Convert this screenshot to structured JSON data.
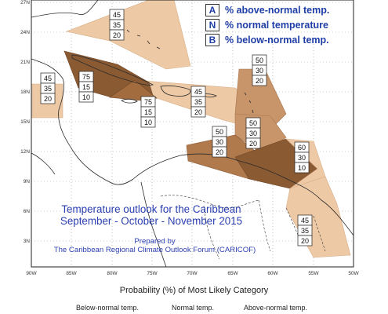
{
  "legend_key": [
    {
      "letter": "A",
      "text": "% above-normal temp."
    },
    {
      "letter": "N",
      "text": "% normal temperature"
    },
    {
      "letter": "B",
      "text": "% below-normal temp."
    }
  ],
  "map_title": {
    "line1": "Temperature outlook for the Caribbean",
    "line2": "September - October - November 2015"
  },
  "prepared_by": {
    "line1": "Prepared by",
    "line2": "The Caribbean Regional Climate Outlook Forum (CARICOF)"
  },
  "probability_title": "Probability (%) of Most Likely Category",
  "categories": {
    "below": "Below-normal temp.",
    "normal": "Normal temp.",
    "above": "Above-normal temp."
  },
  "lat_labels": [
    "27N",
    "24N",
    "21N",
    "18N",
    "15N",
    "12N",
    "9N",
    "6N",
    "3N"
  ],
  "lon_labels": [
    "90W",
    "85W",
    "80W",
    "75W",
    "70W",
    "65W",
    "60W",
    "55W",
    "50W"
  ],
  "zones": [
    {
      "name": "bahamas",
      "above": "45",
      "normal": "35",
      "below": "20",
      "category": "above",
      "strength": "light"
    },
    {
      "name": "belize-yucatan",
      "above": "45",
      "normal": "35",
      "below": "20",
      "category": "above",
      "strength": "light"
    },
    {
      "name": "cuba-west",
      "above": "75",
      "normal": "15",
      "below": "10",
      "category": "above",
      "strength": "dark"
    },
    {
      "name": "jamaica",
      "above": "75",
      "normal": "15",
      "below": "10",
      "category": "above",
      "strength": "dark"
    },
    {
      "name": "hispaniola-pr",
      "above": "45",
      "normal": "35",
      "below": "20",
      "category": "above",
      "strength": "light"
    },
    {
      "name": "leeward-islands",
      "above": "50",
      "normal": "30",
      "below": "20",
      "category": "above",
      "strength": "medium"
    },
    {
      "name": "windward-islands",
      "above": "50",
      "normal": "30",
      "below": "20",
      "category": "above",
      "strength": "medium"
    },
    {
      "name": "abc-islands",
      "above": "50",
      "normal": "30",
      "below": "20",
      "category": "above",
      "strength": "medium"
    },
    {
      "name": "trinidad-guyana",
      "above": "60",
      "normal": "30",
      "below": "10",
      "category": "above",
      "strength": "dark"
    },
    {
      "name": "suriname-guiana",
      "above": "45",
      "normal": "35",
      "below": "20",
      "category": "above",
      "strength": "light"
    }
  ],
  "colors": {
    "light": "#edc9a5",
    "medium": "#c8956a",
    "dark": "#8a5a33",
    "key_text": "#1f3ea6",
    "title_text": "#2b3fb0"
  }
}
